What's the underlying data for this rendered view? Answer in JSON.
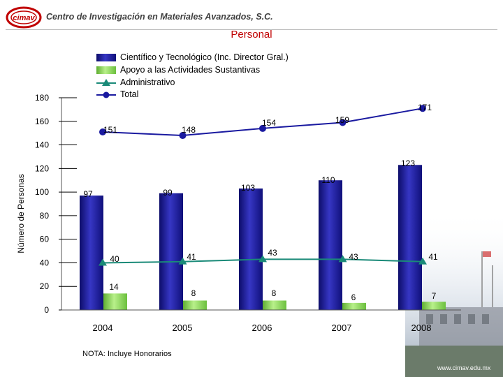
{
  "header": {
    "logo_text": "cimav",
    "org_name": "Centro de Investigación en Materiales Avanzados, S.C."
  },
  "colors": {
    "bar_sci": "#1f1f9a",
    "bar_support": "#8fd65a",
    "line_admin": "#1a8a78",
    "line_total": "#1a1aa0",
    "title": "#c00000"
  },
  "chart_data": {
    "type": "bar",
    "title": "Personal",
    "ylabel": "Número de Personas",
    "xlabel": "",
    "categories": [
      "2004",
      "2005",
      "2006",
      "2007",
      "2008"
    ],
    "ylim": [
      0,
      180
    ],
    "yticks": [
      0,
      20,
      40,
      60,
      80,
      100,
      120,
      140,
      160,
      180
    ],
    "legend_position": "top",
    "series": [
      {
        "name": "Científico y Tecnológico (Inc. Director Gral.)",
        "kind": "bar",
        "values": [
          97,
          99,
          103,
          110,
          123
        ]
      },
      {
        "name": "Apoyo a las Actividades Sustantivas",
        "kind": "bar",
        "values": [
          14,
          8,
          8,
          6,
          7
        ]
      },
      {
        "name": "Administrativo",
        "kind": "line",
        "marker": "triangle",
        "values": [
          40,
          41,
          43,
          43,
          41
        ]
      },
      {
        "name": "Total",
        "kind": "line",
        "marker": "circle",
        "values": [
          151,
          148,
          154,
          159,
          171
        ]
      }
    ]
  },
  "note": "NOTA: Incluye Honorarios",
  "website": "www.cimav.edu.mx"
}
